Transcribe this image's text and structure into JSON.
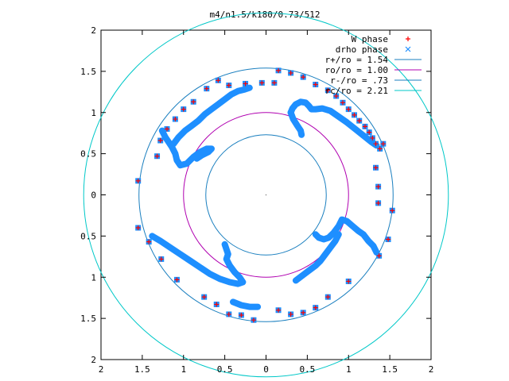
{
  "chart_data": {
    "type": "scatter",
    "title": "m4/n1.5/k180/0.73/512",
    "xlim": [
      -2,
      2
    ],
    "ylim": [
      -2,
      2
    ],
    "x_tick_labels": [
      "2",
      "1.5",
      "1",
      "0.5",
      "0",
      "0.5",
      "1",
      "1.5",
      "2"
    ],
    "y_tick_labels": [
      "2",
      "1.5",
      "1",
      "0.5",
      "0",
      "0.5",
      "1",
      "1.5",
      "2"
    ],
    "legend_position": "top-right",
    "grid": false,
    "series": [
      {
        "name": "W phase",
        "kind": "points",
        "color": "#ff0000",
        "marker": "plus",
        "points": [
          [
            0.15,
            1.51
          ],
          [
            0.3,
            1.48
          ],
          [
            0.45,
            1.43
          ],
          [
            0.6,
            1.34
          ],
          [
            0.75,
            1.27
          ],
          [
            0.85,
            1.2
          ],
          [
            0.93,
            1.12
          ],
          [
            1.0,
            1.04
          ],
          [
            1.07,
            0.97
          ],
          [
            1.13,
            0.9
          ],
          [
            1.2,
            0.83
          ],
          [
            1.25,
            0.76
          ],
          [
            1.29,
            0.69
          ],
          [
            1.33,
            0.62
          ],
          [
            1.38,
            0.56
          ],
          [
            1.42,
            0.62
          ],
          [
            1.33,
            0.33
          ],
          [
            1.36,
            0.1
          ],
          [
            1.36,
            -0.1
          ],
          [
            1.53,
            -0.19
          ],
          [
            1.48,
            -0.54
          ],
          [
            1.37,
            -0.74
          ],
          [
            1.0,
            -1.05
          ],
          [
            0.75,
            -1.24
          ],
          [
            0.6,
            -1.37
          ],
          [
            0.45,
            -1.43
          ],
          [
            0.3,
            -1.45
          ],
          [
            0.15,
            -1.4
          ],
          [
            -0.15,
            -1.52
          ],
          [
            -0.3,
            -1.46
          ],
          [
            -0.45,
            -1.45
          ],
          [
            -0.6,
            -1.33
          ],
          [
            -0.75,
            -1.24
          ],
          [
            -1.08,
            -1.03
          ],
          [
            -1.27,
            -0.78
          ],
          [
            -1.42,
            -0.57
          ],
          [
            -1.55,
            -0.4
          ],
          [
            -1.55,
            0.17
          ],
          [
            -1.32,
            0.47
          ],
          [
            -1.28,
            0.66
          ],
          [
            -1.2,
            0.8
          ],
          [
            -1.1,
            0.92
          ],
          [
            -1.0,
            1.04
          ],
          [
            -0.88,
            1.13
          ],
          [
            -0.72,
            1.29
          ],
          [
            -0.58,
            1.39
          ],
          [
            -0.45,
            1.33
          ],
          [
            -0.25,
            1.35
          ],
          [
            -0.05,
            1.36
          ],
          [
            0.1,
            1.36
          ]
        ]
      },
      {
        "name": "drho phase",
        "kind": "points",
        "color": "#1e8fff",
        "marker": "cross",
        "points": [
          [
            0.15,
            1.51
          ],
          [
            0.3,
            1.48
          ],
          [
            0.45,
            1.43
          ],
          [
            0.6,
            1.34
          ],
          [
            0.75,
            1.27
          ],
          [
            0.85,
            1.2
          ],
          [
            0.93,
            1.12
          ],
          [
            1.0,
            1.04
          ],
          [
            1.07,
            0.97
          ],
          [
            1.13,
            0.9
          ],
          [
            1.2,
            0.83
          ],
          [
            1.25,
            0.76
          ],
          [
            1.29,
            0.69
          ],
          [
            1.33,
            0.62
          ],
          [
            1.38,
            0.56
          ],
          [
            1.42,
            0.62
          ],
          [
            1.33,
            0.33
          ],
          [
            1.36,
            0.1
          ],
          [
            1.36,
            -0.1
          ],
          [
            1.53,
            -0.19
          ],
          [
            1.48,
            -0.54
          ],
          [
            1.37,
            -0.74
          ],
          [
            1.0,
            -1.05
          ],
          [
            0.75,
            -1.24
          ],
          [
            0.6,
            -1.37
          ],
          [
            0.45,
            -1.43
          ],
          [
            0.3,
            -1.45
          ],
          [
            0.15,
            -1.4
          ],
          [
            -0.15,
            -1.52
          ],
          [
            -0.3,
            -1.46
          ],
          [
            -0.45,
            -1.45
          ],
          [
            -0.6,
            -1.33
          ],
          [
            -0.75,
            -1.24
          ],
          [
            -1.08,
            -1.03
          ],
          [
            -1.27,
            -0.78
          ],
          [
            -1.42,
            -0.57
          ],
          [
            -1.55,
            -0.4
          ],
          [
            -1.55,
            0.17
          ],
          [
            -1.32,
            0.47
          ],
          [
            -1.28,
            0.66
          ],
          [
            -1.2,
            0.8
          ],
          [
            -1.1,
            0.92
          ],
          [
            -1.0,
            1.04
          ],
          [
            -0.88,
            1.13
          ],
          [
            -0.72,
            1.29
          ],
          [
            -0.58,
            1.39
          ],
          [
            -0.45,
            1.33
          ],
          [
            -0.25,
            1.35
          ],
          [
            -0.05,
            1.36
          ],
          [
            0.1,
            1.36
          ]
        ]
      },
      {
        "name": "r+/ro = 1.54",
        "kind": "circle",
        "radius": 1.54,
        "color": "#1a7fbf"
      },
      {
        "name": "ro/ro = 1.00",
        "kind": "circle",
        "radius": 1.0,
        "color": "#b000b0"
      },
      {
        "name": "r-/ro = .73",
        "kind": "circle",
        "radius": 0.73,
        "color": "#1a7fbf"
      },
      {
        "name": "rc/ro = 2.21",
        "kind": "circle",
        "radius": 2.21,
        "color": "#00c8c8"
      }
    ],
    "curves": [
      {
        "color": "#1e8fff",
        "points": [
          [
            0.3,
            1.0
          ],
          [
            0.32,
            1.05
          ],
          [
            0.36,
            1.1
          ],
          [
            0.42,
            1.13
          ],
          [
            0.48,
            1.12
          ],
          [
            0.52,
            1.08
          ],
          [
            0.55,
            1.04
          ],
          [
            0.6,
            1.04
          ],
          [
            0.68,
            1.05
          ],
          [
            0.78,
            1.02
          ],
          [
            0.88,
            0.95
          ],
          [
            0.98,
            0.88
          ],
          [
            1.08,
            0.8
          ],
          [
            1.18,
            0.72
          ],
          [
            1.28,
            0.64
          ],
          [
            1.34,
            0.6
          ]
        ]
      },
      {
        "color": "#1e8fff",
        "points": [
          [
            0.3,
            1.0
          ],
          [
            0.33,
            0.92
          ],
          [
            0.38,
            0.84
          ],
          [
            0.42,
            0.78
          ],
          [
            0.43,
            0.73
          ]
        ]
      },
      {
        "color": "#1e8fff",
        "points": [
          [
            0.6,
            -0.48
          ],
          [
            0.64,
            -0.52
          ],
          [
            0.7,
            -0.54
          ],
          [
            0.76,
            -0.52
          ],
          [
            0.82,
            -0.46
          ],
          [
            0.88,
            -0.38
          ],
          [
            0.92,
            -0.3
          ],
          [
            0.98,
            -0.32
          ],
          [
            1.05,
            -0.38
          ],
          [
            1.12,
            -0.44
          ],
          [
            1.18,
            -0.48
          ],
          [
            1.24,
            -0.56
          ],
          [
            1.3,
            -0.62
          ],
          [
            1.34,
            -0.7
          ]
        ]
      },
      {
        "color": "#1e8fff",
        "points": [
          [
            0.88,
            -0.48
          ],
          [
            0.84,
            -0.56
          ],
          [
            0.78,
            -0.64
          ],
          [
            0.72,
            -0.72
          ],
          [
            0.66,
            -0.8
          ],
          [
            0.6,
            -0.86
          ],
          [
            0.52,
            -0.92
          ],
          [
            0.44,
            -0.98
          ],
          [
            0.36,
            -1.04
          ]
        ]
      },
      {
        "color": "#1e8fff",
        "points": [
          [
            -0.5,
            -0.6
          ],
          [
            -0.48,
            -0.66
          ],
          [
            -0.46,
            -0.72
          ],
          [
            -0.48,
            -0.78
          ],
          [
            -0.44,
            -0.86
          ],
          [
            -0.38,
            -0.94
          ],
          [
            -0.32,
            -1.0
          ],
          [
            -0.28,
            -1.06
          ],
          [
            -0.34,
            -1.08
          ],
          [
            -0.44,
            -1.06
          ],
          [
            -0.56,
            -1.02
          ],
          [
            -0.68,
            -0.96
          ],
          [
            -0.8,
            -0.88
          ],
          [
            -0.92,
            -0.8
          ],
          [
            -1.04,
            -0.72
          ],
          [
            -1.16,
            -0.64
          ],
          [
            -1.28,
            -0.56
          ],
          [
            -1.38,
            -0.5
          ]
        ]
      },
      {
        "color": "#1e8fff",
        "points": [
          [
            -0.84,
            0.44
          ],
          [
            -0.78,
            0.48
          ],
          [
            -0.7,
            0.52
          ],
          [
            -0.66,
            0.56
          ],
          [
            -0.72,
            0.56
          ],
          [
            -0.8,
            0.52
          ],
          [
            -0.88,
            0.46
          ],
          [
            -0.96,
            0.38
          ],
          [
            -1.04,
            0.36
          ],
          [
            -1.08,
            0.42
          ],
          [
            -1.1,
            0.5
          ],
          [
            -1.14,
            0.58
          ],
          [
            -1.18,
            0.64
          ],
          [
            -1.22,
            0.7
          ],
          [
            -1.26,
            0.78
          ]
        ]
      },
      {
        "color": "#1e8fff",
        "points": [
          [
            -0.2,
            1.3
          ],
          [
            -0.26,
            1.28
          ],
          [
            -0.34,
            1.26
          ],
          [
            -0.42,
            1.22
          ],
          [
            -0.5,
            1.16
          ],
          [
            -0.58,
            1.1
          ],
          [
            -0.66,
            1.04
          ],
          [
            -0.74,
            0.98
          ],
          [
            -0.82,
            0.9
          ],
          [
            -0.9,
            0.84
          ],
          [
            -0.98,
            0.78
          ],
          [
            -1.06,
            0.7
          ],
          [
            -1.12,
            0.62
          ]
        ]
      },
      {
        "color": "#1e8fff",
        "points": [
          [
            -0.4,
            -1.3
          ],
          [
            -0.3,
            -1.34
          ],
          [
            -0.2,
            -1.36
          ],
          [
            -0.1,
            -1.36
          ]
        ]
      }
    ]
  }
}
